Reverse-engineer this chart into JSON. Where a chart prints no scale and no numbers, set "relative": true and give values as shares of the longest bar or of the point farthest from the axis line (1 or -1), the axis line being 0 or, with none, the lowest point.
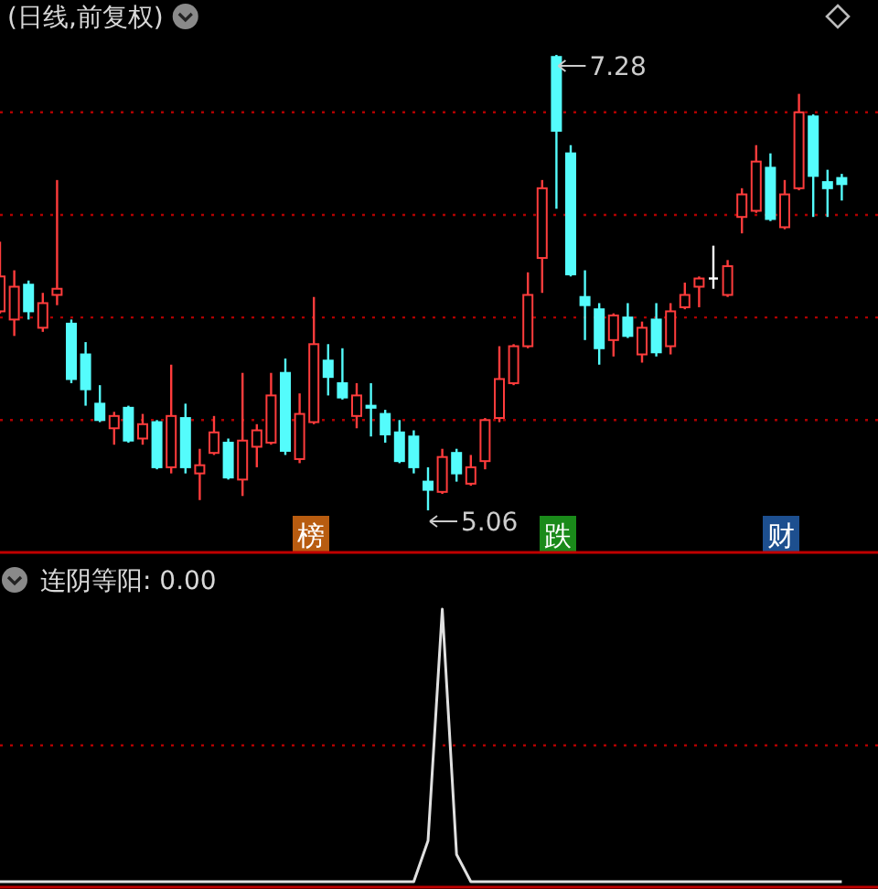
{
  "chart_data": [
    {
      "type": "candlestick",
      "title": "(日线,前复权)",
      "categories": [
        null,
        null,
        null,
        null,
        null,
        null,
        null,
        null,
        null,
        null,
        null,
        null,
        null,
        null,
        null,
        null,
        null,
        null,
        null,
        null,
        null,
        null,
        null,
        null,
        null,
        null,
        null,
        null,
        null,
        null,
        null,
        null,
        null,
        null,
        null,
        null,
        null,
        null,
        null,
        null,
        null,
        null,
        null,
        null,
        null,
        null,
        null,
        null,
        null,
        null,
        null,
        null,
        null,
        null,
        null,
        null,
        null,
        null,
        null,
        null
      ],
      "ohlc": [
        [
          6.03,
          6.37,
          6.02,
          6.2
        ],
        [
          5.99,
          6.23,
          5.91,
          6.15
        ],
        [
          6.16,
          6.18,
          5.99,
          6.03
        ],
        [
          5.95,
          6.12,
          5.93,
          6.07
        ],
        [
          6.11,
          6.67,
          6.06,
          6.14
        ],
        [
          5.97,
          5.99,
          5.68,
          5.7
        ],
        [
          5.82,
          5.88,
          5.57,
          5.65
        ],
        [
          5.58,
          5.67,
          5.49,
          5.5
        ],
        [
          5.46,
          5.54,
          5.38,
          5.52
        ],
        [
          5.56,
          5.57,
          5.39,
          5.4
        ],
        [
          5.41,
          5.53,
          5.38,
          5.48
        ],
        [
          5.49,
          5.5,
          5.26,
          5.27
        ],
        [
          5.27,
          5.77,
          5.24,
          5.52
        ],
        [
          5.51,
          5.58,
          5.24,
          5.27
        ],
        [
          5.24,
          5.36,
          5.11,
          5.28
        ],
        [
          5.34,
          5.52,
          5.33,
          5.44
        ],
        [
          5.39,
          5.41,
          5.21,
          5.22
        ],
        [
          5.21,
          5.73,
          5.13,
          5.4
        ],
        [
          5.37,
          5.48,
          5.27,
          5.45
        ],
        [
          5.39,
          5.73,
          5.38,
          5.62
        ],
        [
          5.73,
          5.8,
          5.33,
          5.35
        ],
        [
          5.31,
          5.63,
          5.29,
          5.53
        ],
        [
          5.49,
          6.1,
          5.48,
          5.87
        ],
        [
          5.79,
          5.87,
          5.62,
          5.71
        ],
        [
          5.68,
          5.85,
          5.6,
          5.61
        ],
        [
          5.52,
          5.68,
          5.46,
          5.62
        ],
        [
          5.57,
          5.68,
          5.42,
          5.56
        ],
        [
          5.53,
          5.55,
          5.39,
          5.43
        ],
        [
          5.44,
          5.5,
          5.29,
          5.3
        ],
        [
          5.42,
          5.45,
          5.24,
          5.27
        ],
        [
          5.2,
          5.27,
          5.06,
          5.16
        ],
        [
          5.15,
          5.36,
          5.14,
          5.32
        ],
        [
          5.34,
          5.36,
          5.2,
          5.24
        ],
        [
          5.19,
          5.33,
          5.18,
          5.27
        ],
        [
          5.3,
          5.51,
          5.26,
          5.5
        ],
        [
          5.51,
          5.86,
          5.49,
          5.7
        ],
        [
          5.68,
          5.87,
          5.67,
          5.86
        ],
        [
          5.86,
          6.22,
          5.85,
          6.11
        ],
        [
          6.29,
          6.67,
          6.12,
          6.63
        ],
        [
          7.27,
          7.28,
          6.53,
          6.91
        ],
        [
          6.8,
          6.84,
          6.2,
          6.21
        ],
        [
          6.1,
          6.23,
          5.89,
          6.06
        ],
        [
          6.04,
          6.07,
          5.77,
          5.85
        ],
        [
          5.89,
          6.02,
          5.81,
          6.01
        ],
        [
          6.0,
          6.07,
          5.9,
          5.91
        ],
        [
          5.82,
          5.98,
          5.78,
          5.95
        ],
        [
          5.99,
          6.07,
          5.81,
          5.83
        ],
        [
          5.86,
          6.07,
          5.82,
          6.03
        ],
        [
          6.05,
          6.17,
          6.04,
          6.11
        ],
        [
          6.15,
          6.2,
          6.05,
          6.19
        ],
        [
          6.19,
          6.35,
          6.14,
          6.19
        ],
        [
          6.11,
          6.28,
          6.1,
          6.25
        ],
        [
          6.49,
          6.63,
          6.41,
          6.6
        ],
        [
          6.52,
          6.84,
          6.51,
          6.76
        ],
        [
          6.73,
          6.8,
          6.47,
          6.48
        ],
        [
          6.44,
          6.67,
          6.43,
          6.6
        ],
        [
          6.63,
          7.09,
          6.62,
          7.0
        ],
        [
          6.98,
          6.99,
          6.49,
          6.69
        ],
        [
          6.66,
          6.72,
          6.49,
          6.63
        ],
        [
          6.68,
          6.7,
          6.57,
          6.65
        ]
      ],
      "colors": [
        "#ff3c3c",
        "#ff3c3c",
        "#54fcfc",
        "#ff3c3c",
        "#ff3c3c",
        "#54fcfc",
        "#54fcfc",
        "#54fcfc",
        "#ff3c3c",
        "#54fcfc",
        "#ff3c3c",
        "#54fcfc",
        "#ff3c3c",
        "#54fcfc",
        "#ff3c3c",
        "#ff3c3c",
        "#54fcfc",
        "#ff3c3c",
        "#ff3c3c",
        "#ff3c3c",
        "#54fcfc",
        "#ff3c3c",
        "#ff3c3c",
        "#54fcfc",
        "#54fcfc",
        "#ff3c3c",
        "#54fcfc",
        "#54fcfc",
        "#54fcfc",
        "#54fcfc",
        "#54fcfc",
        "#ff3c3c",
        "#54fcfc",
        "#ff3c3c",
        "#ff3c3c",
        "#ff3c3c",
        "#ff3c3c",
        "#ff3c3c",
        "#ff3c3c",
        "#54fcfc",
        "#54fcfc",
        "#54fcfc",
        "#54fcfc",
        "#ff3c3c",
        "#54fcfc",
        "#ff3c3c",
        "#54fcfc",
        "#ff3c3c",
        "#ff3c3c",
        "#ff3c3c",
        "#ffffff",
        "#ff3c3c",
        "#ff3c3c",
        "#ff3c3c",
        "#54fcfc",
        "#ff3c3c",
        "#ff3c3c",
        "#54fcfc",
        "#54fcfc",
        "#54fcfc"
      ],
      "yticks": [
        {
          "value": 5.5,
          "label": null
        },
        {
          "value": 6.0,
          "label": null
        },
        {
          "value": 6.5,
          "label": null
        },
        {
          "value": 7.0,
          "label": null
        }
      ],
      "grid": "y",
      "annotations": [
        "7.28",
        "5.06",
        "榜",
        "跌",
        "财"
      ]
    },
    {
      "type": "line",
      "title": "连阴等阳: 0.00",
      "relative": true,
      "categories": [
        null,
        null,
        null,
        null,
        null,
        null,
        null,
        null,
        null,
        null,
        null,
        null,
        null,
        null,
        null,
        null,
        null,
        null,
        null,
        null,
        null,
        null,
        null,
        null,
        null,
        null,
        null,
        null,
        null,
        null,
        null,
        null,
        null,
        null,
        null,
        null,
        null,
        null,
        null,
        null,
        null,
        null,
        null,
        null,
        null,
        null,
        null,
        null,
        null,
        null,
        null,
        null,
        null,
        null,
        null,
        null,
        null,
        null,
        null,
        null
      ],
      "series": [
        {
          "color": "#e0e0e0",
          "values": [
            0,
            0,
            0,
            0,
            0,
            0,
            0,
            0,
            0,
            0,
            0,
            0,
            0,
            0,
            0,
            0,
            0,
            0,
            0,
            0,
            0,
            0,
            0,
            0,
            0,
            0,
            0,
            0,
            0,
            0,
            0.15,
            1,
            0.1,
            0,
            0,
            0,
            0,
            0,
            0,
            0,
            0,
            0,
            0,
            0,
            0,
            0,
            0,
            0,
            0,
            0,
            0,
            0,
            0,
            0,
            0,
            0,
            0,
            0,
            0,
            0
          ]
        }
      ],
      "ref_lines": [
        {
          "axis": "y",
          "value": 0.5,
          "color": "#b00000",
          "line_style": "dotted"
        }
      ]
    }
  ]
}
